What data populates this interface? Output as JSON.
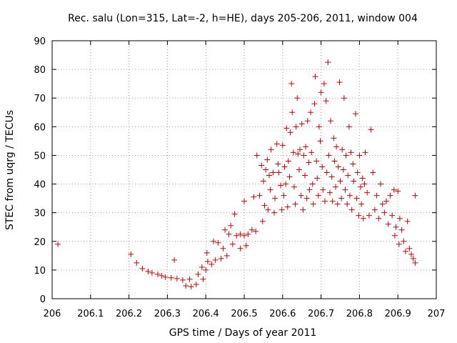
{
  "chart_data": {
    "type": "scatter",
    "title": "Rec. salu (Lon=315, Lat=-2, h=HE), days 205-206, 2011, window 004",
    "xlabel": "GPS time / Days of year 2011",
    "ylabel": "STEC from uqrg / TECUs",
    "xlim": [
      206,
      207
    ],
    "ylim": [
      0,
      90
    ],
    "xticks": [
      "206",
      "206.1",
      "206.2",
      "206.3",
      "206.4",
      "206.5",
      "206.6",
      "206.7",
      "206.8",
      "206.9",
      "207"
    ],
    "yticks": [
      "0",
      "10",
      "20",
      "30",
      "40",
      "50",
      "60",
      "70",
      "80",
      "90"
    ],
    "grid": true,
    "marker": "+",
    "color": "#d00000",
    "points": [
      [
        206.015,
        19
      ],
      [
        206.205,
        15.5
      ],
      [
        206.22,
        12.5
      ],
      [
        206.235,
        10.5
      ],
      [
        206.25,
        9.5
      ],
      [
        206.26,
        9
      ],
      [
        206.275,
        8.5
      ],
      [
        206.285,
        8
      ],
      [
        206.295,
        7.5
      ],
      [
        206.31,
        7.3
      ],
      [
        206.318,
        13.5
      ],
      [
        206.325,
        7
      ],
      [
        206.34,
        6.5
      ],
      [
        206.348,
        4.5
      ],
      [
        206.358,
        6.8
      ],
      [
        206.362,
        4.2
      ],
      [
        206.375,
        5
      ],
      [
        206.38,
        8.5
      ],
      [
        206.39,
        11
      ],
      [
        206.393,
        6.8
      ],
      [
        206.4,
        10
      ],
      [
        206.403,
        16
      ],
      [
        206.405,
        13
      ],
      [
        206.415,
        12
      ],
      [
        206.42,
        20
      ],
      [
        206.425,
        13.5
      ],
      [
        206.432,
        19.5
      ],
      [
        206.44,
        14
      ],
      [
        206.445,
        17.5
      ],
      [
        206.45,
        24
      ],
      [
        206.455,
        15
      ],
      [
        206.46,
        22.5
      ],
      [
        206.465,
        25.5
      ],
      [
        206.475,
        29.5
      ],
      [
        206.47,
        19
      ],
      [
        206.48,
        22
      ],
      [
        206.49,
        22.5
      ],
      [
        206.49,
        17.5
      ],
      [
        206.5,
        22
      ],
      [
        206.5,
        34
      ],
      [
        206.505,
        18.5
      ],
      [
        206.51,
        22.5
      ],
      [
        206.52,
        24
      ],
      [
        206.525,
        35.5
      ],
      [
        206.53,
        23.5
      ],
      [
        206.533,
        50
      ],
      [
        206.54,
        36
      ],
      [
        206.545,
        46.5
      ],
      [
        206.548,
        27
      ],
      [
        206.55,
        41
      ],
      [
        206.553,
        32.5
      ],
      [
        206.556,
        45
      ],
      [
        206.56,
        48.5
      ],
      [
        206.562,
        31
      ],
      [
        206.565,
        43
      ],
      [
        206.568,
        38
      ],
      [
        206.57,
        52
      ],
      [
        206.575,
        44
      ],
      [
        206.578,
        30
      ],
      [
        206.58,
        35
      ],
      [
        206.585,
        54
      ],
      [
        206.588,
        47
      ],
      [
        206.59,
        44
      ],
      [
        206.595,
        39.5
      ],
      [
        206.598,
        31
      ],
      [
        206.6,
        53.5
      ],
      [
        206.603,
        36
      ],
      [
        206.605,
        46
      ],
      [
        206.608,
        40
      ],
      [
        206.61,
        59.5
      ],
      [
        206.613,
        32
      ],
      [
        206.615,
        48
      ],
      [
        206.618,
        42.5
      ],
      [
        206.62,
        58
      ],
      [
        206.623,
        75
      ],
      [
        206.625,
        65
      ],
      [
        206.628,
        51
      ],
      [
        206.63,
        39
      ],
      [
        206.633,
        33
      ],
      [
        206.635,
        60
      ],
      [
        206.638,
        70
      ],
      [
        206.64,
        50.5
      ],
      [
        206.643,
        45
      ],
      [
        206.645,
        52
      ],
      [
        206.648,
        36
      ],
      [
        206.65,
        61
      ],
      [
        206.653,
        31
      ],
      [
        206.655,
        50
      ],
      [
        206.658,
        43
      ],
      [
        206.66,
        53
      ],
      [
        206.663,
        35
      ],
      [
        206.665,
        62
      ],
      [
        206.668,
        47.5
      ],
      [
        206.67,
        38
      ],
      [
        206.673,
        65
      ],
      [
        206.675,
        51
      ],
      [
        206.678,
        40
      ],
      [
        206.68,
        33
      ],
      [
        206.683,
        68
      ],
      [
        206.685,
        77.5
      ],
      [
        206.688,
        48
      ],
      [
        206.69,
        42
      ],
      [
        206.693,
        36
      ],
      [
        206.695,
        60
      ],
      [
        206.698,
        55
      ],
      [
        206.7,
        72
      ],
      [
        206.703,
        46
      ],
      [
        206.705,
        38
      ],
      [
        206.708,
        75
      ],
      [
        206.71,
        34
      ],
      [
        206.713,
        69
      ],
      [
        206.715,
        44
      ],
      [
        206.718,
        82.5
      ],
      [
        206.72,
        50
      ],
      [
        206.723,
        37
      ],
      [
        206.725,
        62
      ],
      [
        206.728,
        42.5
      ],
      [
        206.73,
        34
      ],
      [
        206.733,
        56
      ],
      [
        206.735,
        48
      ],
      [
        206.738,
        39
      ],
      [
        206.74,
        53
      ],
      [
        206.743,
        33
      ],
      [
        206.745,
        46
      ],
      [
        206.748,
        75.5
      ],
      [
        206.75,
        41
      ],
      [
        206.753,
        35
      ],
      [
        206.755,
        52
      ],
      [
        206.758,
        45
      ],
      [
        206.76,
        70
      ],
      [
        206.763,
        38
      ],
      [
        206.765,
        50
      ],
      [
        206.768,
        33
      ],
      [
        206.77,
        43
      ],
      [
        206.773,
        60
      ],
      [
        206.775,
        36
      ],
      [
        206.778,
        51
      ],
      [
        206.78,
        31
      ],
      [
        206.783,
        47
      ],
      [
        206.785,
        41
      ],
      [
        206.79,
        64.5
      ],
      [
        206.793,
        35
      ],
      [
        206.795,
        44
      ],
      [
        206.798,
        29
      ],
      [
        206.8,
        50
      ],
      [
        206.803,
        39
      ],
      [
        206.805,
        33
      ],
      [
        206.808,
        42
      ],
      [
        206.81,
        28
      ],
      [
        206.813,
        40
      ],
      [
        206.815,
        51
      ],
      [
        206.82,
        37
      ],
      [
        206.825,
        29
      ],
      [
        206.83,
        59
      ],
      [
        206.835,
        44
      ],
      [
        206.84,
        31
      ],
      [
        206.845,
        36
      ],
      [
        206.85,
        28
      ],
      [
        206.855,
        40
      ],
      [
        206.86,
        33
      ],
      [
        206.865,
        30
      ],
      [
        206.87,
        34
      ],
      [
        206.875,
        26
      ],
      [
        206.88,
        36
      ],
      [
        206.885,
        29
      ],
      [
        206.89,
        38
      ],
      [
        206.892,
        22
      ],
      [
        206.895,
        25
      ],
      [
        206.9,
        37.5
      ],
      [
        206.903,
        19
      ],
      [
        206.905,
        28
      ],
      [
        206.91,
        24
      ],
      [
        206.915,
        20
      ],
      [
        206.92,
        16.5
      ],
      [
        206.925,
        27
      ],
      [
        206.93,
        17.5
      ],
      [
        206.935,
        15.5
      ],
      [
        206.94,
        14
      ],
      [
        206.945,
        12.5
      ],
      [
        206.945,
        36
      ]
    ]
  }
}
